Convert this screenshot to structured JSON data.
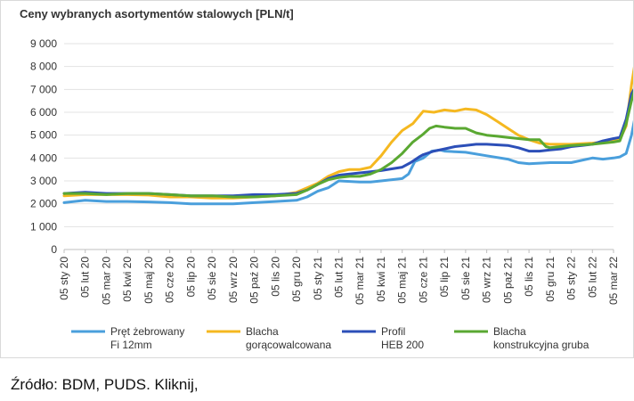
{
  "chart_data": {
    "type": "line",
    "title": "Ceny wybranych asortymentów stalowych [PLN/t]",
    "xlabel": "",
    "ylabel": "",
    "ylim": [
      0,
      9000
    ],
    "yticks": [
      0,
      1000,
      2000,
      3000,
      4000,
      5000,
      6000,
      7000,
      8000,
      9000
    ],
    "ytick_labels": [
      "0",
      "1 000",
      "2 000",
      "3 000",
      "4 000",
      "5 000",
      "6 000",
      "7 000",
      "8 000",
      "9 000"
    ],
    "categories": [
      "05 sty 20",
      "05 lut 20",
      "05 mar 20",
      "05 kwi 20",
      "05 maj 20",
      "05 cze 20",
      "05 lip 20",
      "05 sie 20",
      "05 wrz 20",
      "05 paź 20",
      "05 lis 20",
      "05 gru 20",
      "05 sty 21",
      "05 lut 21",
      "05 mar 21",
      "05 kwi 21",
      "05 maj 21",
      "05 cze 21",
      "05 lip 21",
      "05 sie 21",
      "05 wrz 21",
      "05 paź 21",
      "05 lis 21",
      "05 gru 21",
      "05 sty 22",
      "05 lut 22",
      "05 mar 22"
    ],
    "grid": true,
    "legend_position": "bottom",
    "series": [
      {
        "name": "Pręt żebrowany Fi 12mm",
        "legend_lines": [
          "Pręt żebrowany",
          "Fi 12mm"
        ],
        "color": "#4a9fdc",
        "values": [
          [
            0,
            2050
          ],
          [
            1,
            2150
          ],
          [
            2,
            2100
          ],
          [
            3,
            2100
          ],
          [
            4,
            2080
          ],
          [
            5,
            2050
          ],
          [
            6,
            2000
          ],
          [
            7,
            2000
          ],
          [
            8,
            2000
          ],
          [
            9,
            2050
          ],
          [
            10,
            2100
          ],
          [
            11,
            2150
          ],
          [
            11.5,
            2300
          ],
          [
            12,
            2550
          ],
          [
            12.5,
            2700
          ],
          [
            13,
            3000
          ],
          [
            14,
            2950
          ],
          [
            14.5,
            2950
          ],
          [
            15,
            3000
          ],
          [
            16,
            3100
          ],
          [
            16.3,
            3300
          ],
          [
            16.6,
            3850
          ],
          [
            17,
            4000
          ],
          [
            17.4,
            4300
          ],
          [
            17.8,
            4350
          ],
          [
            18,
            4300
          ],
          [
            19,
            4250
          ],
          [
            20,
            4100
          ],
          [
            21,
            3950
          ],
          [
            21.5,
            3800
          ],
          [
            22,
            3750
          ],
          [
            23,
            3800
          ],
          [
            24,
            3800
          ],
          [
            24.5,
            3900
          ],
          [
            25,
            4000
          ],
          [
            25.5,
            3950
          ],
          [
            26,
            4000
          ],
          [
            26.3,
            4050
          ],
          [
            26.6,
            4200
          ],
          [
            26.85,
            5000
          ],
          [
            27,
            5700
          ]
        ]
      },
      {
        "name": "Blacha gorącowalcowana",
        "legend_lines": [
          "Blacha",
          "gorącowalcowana"
        ],
        "color": "#f5b820",
        "values": [
          [
            0,
            2350
          ],
          [
            1,
            2400
          ],
          [
            2,
            2400
          ],
          [
            3,
            2400
          ],
          [
            4,
            2380
          ],
          [
            5,
            2300
          ],
          [
            6,
            2300
          ],
          [
            7,
            2250
          ],
          [
            8,
            2250
          ],
          [
            9,
            2300
          ],
          [
            10,
            2350
          ],
          [
            11,
            2500
          ],
          [
            11.5,
            2700
          ],
          [
            12,
            2900
          ],
          [
            12.5,
            3200
          ],
          [
            13,
            3400
          ],
          [
            13.5,
            3500
          ],
          [
            14,
            3500
          ],
          [
            14.5,
            3600
          ],
          [
            15,
            4100
          ],
          [
            15.5,
            4700
          ],
          [
            16,
            5200
          ],
          [
            16.5,
            5500
          ],
          [
            17,
            6050
          ],
          [
            17.5,
            6000
          ],
          [
            18,
            6100
          ],
          [
            18.5,
            6050
          ],
          [
            19,
            6150
          ],
          [
            19.5,
            6100
          ],
          [
            20,
            5900
          ],
          [
            20.5,
            5600
          ],
          [
            21,
            5300
          ],
          [
            21.5,
            5000
          ],
          [
            22,
            4800
          ],
          [
            22.5,
            4650
          ],
          [
            23,
            4600
          ],
          [
            24,
            4600
          ],
          [
            25,
            4650
          ],
          [
            25.5,
            4700
          ],
          [
            26,
            4750
          ],
          [
            26.3,
            4800
          ],
          [
            26.6,
            5400
          ],
          [
            26.85,
            7200
          ],
          [
            27,
            8050
          ]
        ]
      },
      {
        "name": "Profil HEB 200",
        "legend_lines": [
          "Profil",
          "HEB 200"
        ],
        "color": "#2c4fb8",
        "values": [
          [
            0,
            2450
          ],
          [
            1,
            2500
          ],
          [
            2,
            2450
          ],
          [
            3,
            2450
          ],
          [
            4,
            2450
          ],
          [
            5,
            2400
          ],
          [
            6,
            2350
          ],
          [
            7,
            2350
          ],
          [
            8,
            2350
          ],
          [
            9,
            2400
          ],
          [
            10,
            2400
          ],
          [
            11,
            2450
          ],
          [
            11.5,
            2600
          ],
          [
            12,
            2850
          ],
          [
            12.5,
            3100
          ],
          [
            13,
            3250
          ],
          [
            14,
            3350
          ],
          [
            14.5,
            3400
          ],
          [
            15,
            3450
          ],
          [
            16,
            3600
          ],
          [
            16.4,
            3800
          ],
          [
            16.8,
            4050
          ],
          [
            17,
            4150
          ],
          [
            17.5,
            4300
          ],
          [
            18,
            4400
          ],
          [
            18.5,
            4500
          ],
          [
            19,
            4550
          ],
          [
            19.5,
            4600
          ],
          [
            20,
            4600
          ],
          [
            21,
            4550
          ],
          [
            21.5,
            4450
          ],
          [
            22,
            4300
          ],
          [
            22.5,
            4300
          ],
          [
            23,
            4350
          ],
          [
            23.5,
            4400
          ],
          [
            24,
            4500
          ],
          [
            24.5,
            4550
          ],
          [
            25,
            4600
          ],
          [
            25.5,
            4750
          ],
          [
            26,
            4850
          ],
          [
            26.3,
            4900
          ],
          [
            26.6,
            5700
          ],
          [
            26.85,
            6800
          ],
          [
            27,
            7050
          ]
        ]
      },
      {
        "name": "Blacha konstrukcyjna gruba",
        "legend_lines": [
          "Blacha",
          "konstrukcyjna gruba"
        ],
        "color": "#5aa832",
        "values": [
          [
            0,
            2450
          ],
          [
            1,
            2450
          ],
          [
            2,
            2400
          ],
          [
            3,
            2450
          ],
          [
            4,
            2450
          ],
          [
            5,
            2400
          ],
          [
            6,
            2350
          ],
          [
            7,
            2350
          ],
          [
            8,
            2300
          ],
          [
            9,
            2300
          ],
          [
            10,
            2350
          ],
          [
            11,
            2400
          ],
          [
            11.5,
            2600
          ],
          [
            12,
            2850
          ],
          [
            12.5,
            3050
          ],
          [
            13,
            3150
          ],
          [
            13.5,
            3200
          ],
          [
            14,
            3200
          ],
          [
            14.5,
            3300
          ],
          [
            15,
            3500
          ],
          [
            15.5,
            3800
          ],
          [
            16,
            4200
          ],
          [
            16.5,
            4700
          ],
          [
            17,
            5050
          ],
          [
            17.3,
            5300
          ],
          [
            17.6,
            5400
          ],
          [
            18,
            5350
          ],
          [
            18.5,
            5300
          ],
          [
            19,
            5300
          ],
          [
            19.5,
            5100
          ],
          [
            20,
            5000
          ],
          [
            20.5,
            4950
          ],
          [
            21,
            4900
          ],
          [
            21.5,
            4850
          ],
          [
            22,
            4800
          ],
          [
            22.5,
            4800
          ],
          [
            22.8,
            4500
          ],
          [
            23,
            4450
          ],
          [
            23.5,
            4500
          ],
          [
            24,
            4550
          ],
          [
            25,
            4600
          ],
          [
            25.5,
            4650
          ],
          [
            26,
            4700
          ],
          [
            26.3,
            4750
          ],
          [
            26.6,
            5500
          ],
          [
            26.85,
            6500
          ],
          [
            27,
            7000
          ]
        ]
      }
    ]
  },
  "source_text": "Źródło: BDM, PUDS. Kliknij,"
}
